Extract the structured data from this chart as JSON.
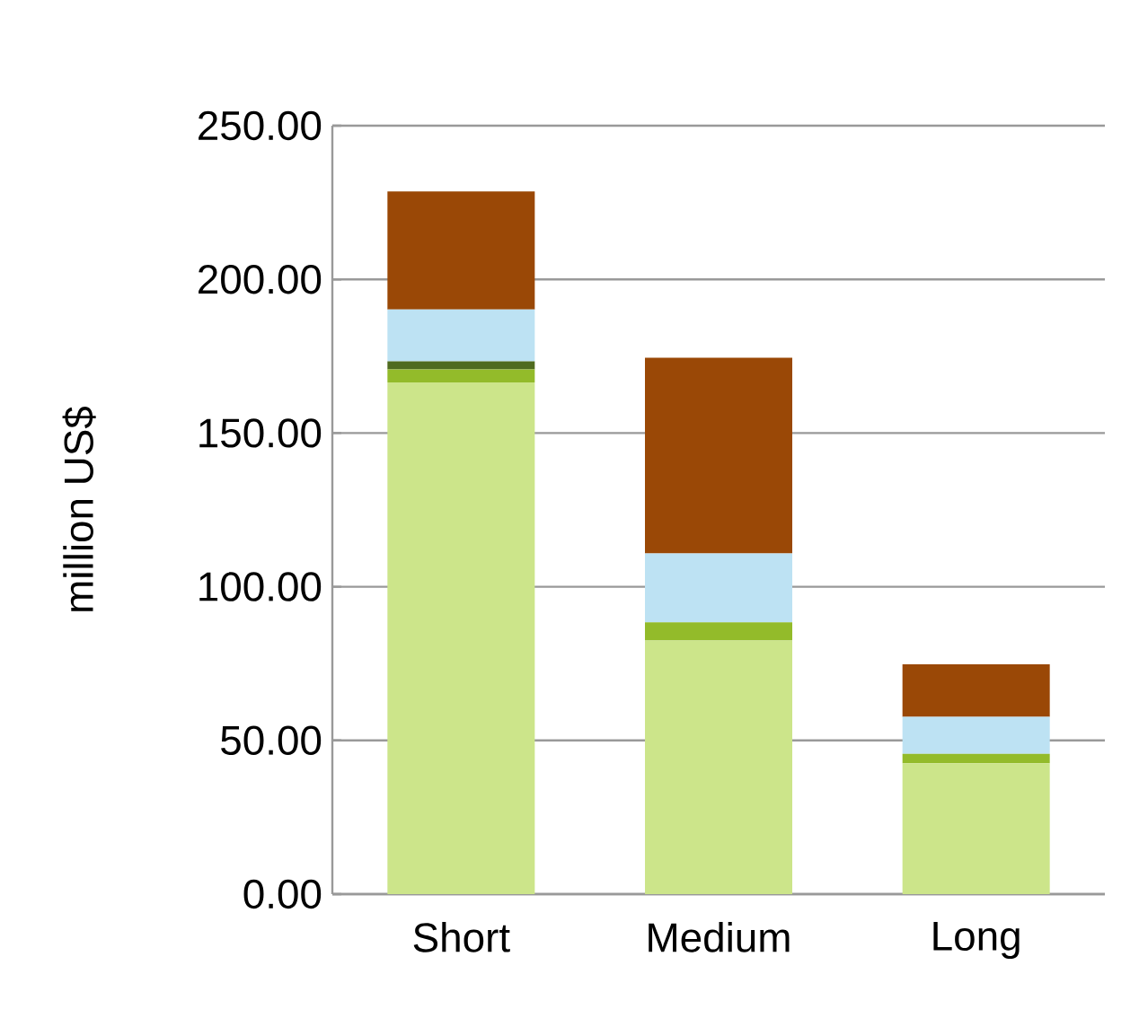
{
  "chart_data": {
    "type": "bar",
    "stacked": true,
    "ylabel": "million US$",
    "categories": [
      "Short",
      "Medium",
      "Long"
    ],
    "series": [
      {
        "color": "#cce58a",
        "values": [
          166.5,
          82.5,
          42.6
        ]
      },
      {
        "color": "#93bb2a",
        "values": [
          4.2,
          5.9,
          3.0
        ]
      },
      {
        "color": "#4f6b1f",
        "values": [
          2.6,
          0,
          0
        ]
      },
      {
        "color": "#bde2f3",
        "values": [
          16.9,
          22.4,
          12.1
        ]
      },
      {
        "color": "#9a4806",
        "values": [
          38.4,
          63.7,
          17.1
        ]
      }
    ],
    "ylim": [
      0,
      250
    ],
    "yticks": [
      {
        "value": 0,
        "label": "0.00"
      },
      {
        "value": 50,
        "label": "50.00"
      },
      {
        "value": 100,
        "label": "100.00"
      },
      {
        "value": 150,
        "label": "150.00"
      },
      {
        "value": 200,
        "label": "200.00"
      },
      {
        "value": 250,
        "label": "250.00"
      }
    ],
    "grid": "y"
  }
}
